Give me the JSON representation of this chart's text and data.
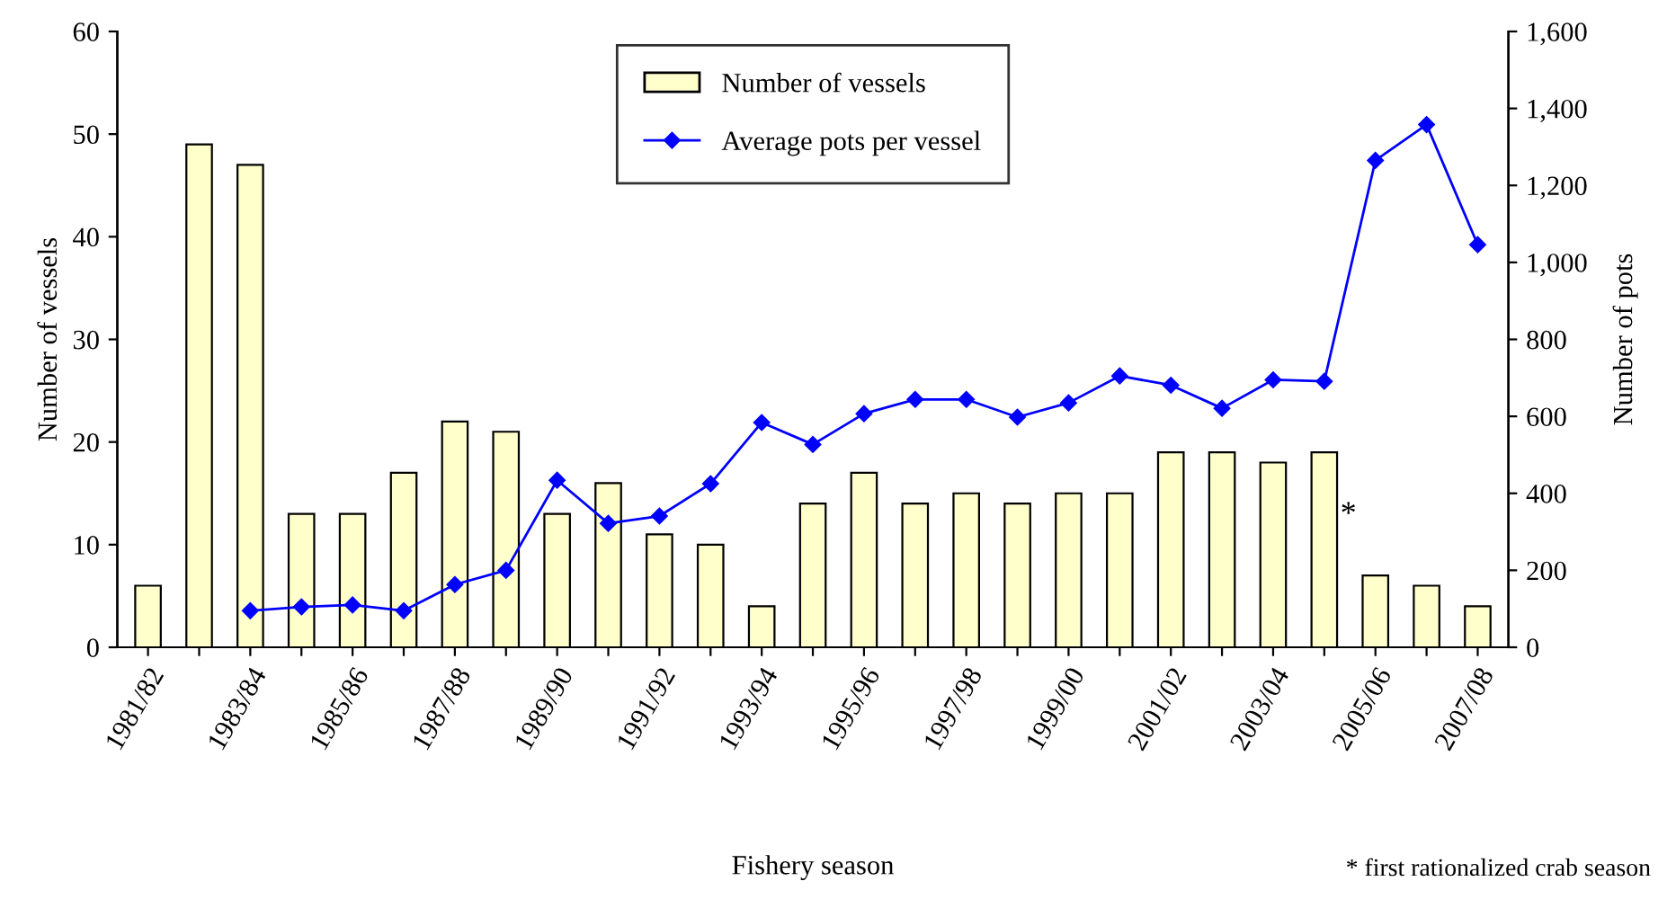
{
  "chart_data": {
    "type": "bar",
    "xlabel": "Fishery season",
    "ylabel": "Number of vessels",
    "y2label": "Number of pots",
    "categories": [
      "1981/82",
      null,
      "1983/84",
      null,
      "1985/86",
      null,
      "1987/88",
      null,
      "1989/90",
      null,
      "1991/92",
      null,
      "1993/94",
      null,
      "1995/96",
      null,
      "1997/98",
      null,
      "1999/00",
      null,
      "2001/02",
      null,
      "2003/04",
      null,
      "2005/06",
      null,
      "2007/08"
    ],
    "series": [
      {
        "name": "Number of vessels",
        "color": "#ffffcc",
        "values": [
          6,
          49,
          47,
          13,
          13,
          17,
          22,
          21,
          13,
          16,
          11,
          10,
          4,
          14,
          17,
          14,
          15,
          14,
          15,
          15,
          19,
          19,
          18,
          19,
          7,
          6,
          4
        ]
      },
      {
        "name": "Average pots per vessel",
        "type": "line",
        "axis": "y2",
        "color": "#0000ff",
        "marker": "diamond",
        "values": [
          null,
          null,
          95,
          105,
          110,
          95,
          163,
          200,
          434,
          322,
          341,
          425,
          584,
          527,
          607,
          644,
          644,
          598,
          635,
          705,
          681,
          621,
          695,
          691,
          1265,
          1358,
          1046
        ]
      }
    ],
    "ylim": [
      0,
      60
    ],
    "yticks": [
      0,
      10,
      20,
      30,
      40,
      50,
      60
    ],
    "y2lim": [
      0,
      1600
    ],
    "y2ticks": [
      0,
      200,
      400,
      600,
      800,
      {
        "value": 1000,
        "label": "1,000"
      },
      {
        "value": 1200,
        "label": "1,200"
      },
      {
        "value": 1400,
        "label": "1,400"
      },
      {
        "value": 1600,
        "label": "1,600"
      }
    ],
    "annotations": [
      "*",
      "* first rationalized crab season"
    ],
    "legend": "top",
    "grid": false
  }
}
